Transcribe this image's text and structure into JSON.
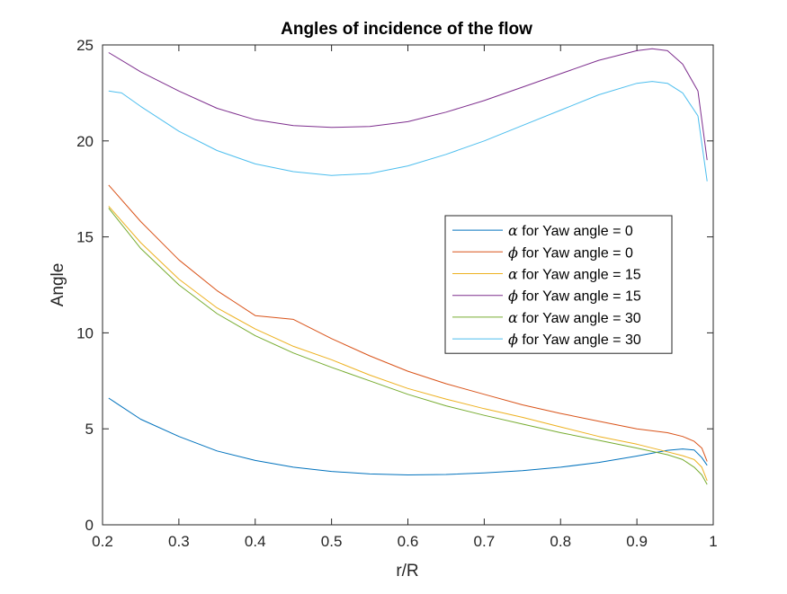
{
  "chart_data": {
    "type": "line",
    "title": "Angles of incidence of the flow",
    "xlabel": "r/R",
    "ylabel": "Angle",
    "xlim": [
      0.2,
      1
    ],
    "ylim": [
      0,
      25
    ],
    "xticks": [
      "0.2",
      "0.3",
      "0.4",
      "0.5",
      "0.6",
      "0.7",
      "0.8",
      "0.9",
      "1"
    ],
    "yticks": [
      "0",
      "5",
      "10",
      "15",
      "20",
      "25"
    ],
    "grid": false,
    "legend_position": "center-right",
    "series": [
      {
        "name": "α for Yaw angle = 0",
        "symbol": "α",
        "label_rest": " for Yaw angle = 0",
        "color": "#0072BD",
        "x": [
          0.208,
          0.25,
          0.3,
          0.35,
          0.4,
          0.45,
          0.5,
          0.55,
          0.6,
          0.65,
          0.7,
          0.75,
          0.8,
          0.85,
          0.9,
          0.94,
          0.96,
          0.975,
          0.985,
          0.992
        ],
        "y": [
          6.6,
          5.5,
          4.6,
          3.85,
          3.35,
          3.0,
          2.78,
          2.65,
          2.6,
          2.62,
          2.7,
          2.82,
          3.0,
          3.25,
          3.58,
          3.88,
          3.95,
          3.9,
          3.5,
          3.1
        ]
      },
      {
        "name": "ϕ for Yaw angle = 0",
        "symbol": "ϕ",
        "label_rest": " for Yaw angle = 0",
        "color": "#D95319",
        "x": [
          0.208,
          0.25,
          0.3,
          0.35,
          0.4,
          0.45,
          0.5,
          0.55,
          0.6,
          0.65,
          0.7,
          0.75,
          0.8,
          0.85,
          0.9,
          0.94,
          0.96,
          0.975,
          0.985,
          0.992
        ],
        "y": [
          17.7,
          15.8,
          13.8,
          12.2,
          10.9,
          10.7,
          9.7,
          8.8,
          8.0,
          7.35,
          6.8,
          6.25,
          5.8,
          5.4,
          5.0,
          4.8,
          4.6,
          4.35,
          4.0,
          3.3
        ]
      },
      {
        "name": "α for Yaw angle = 15",
        "symbol": "α",
        "label_rest": " for Yaw angle = 15",
        "color": "#EDB120",
        "x": [
          0.208,
          0.25,
          0.3,
          0.35,
          0.4,
          0.45,
          0.5,
          0.55,
          0.6,
          0.65,
          0.7,
          0.75,
          0.8,
          0.85,
          0.9,
          0.94,
          0.96,
          0.975,
          0.985,
          0.992
        ],
        "y": [
          16.6,
          14.7,
          12.8,
          11.3,
          10.2,
          9.3,
          8.6,
          7.8,
          7.1,
          6.55,
          6.05,
          5.6,
          5.1,
          4.6,
          4.2,
          3.8,
          3.6,
          3.4,
          3.0,
          2.3
        ]
      },
      {
        "name": "ϕ for Yaw angle = 15",
        "symbol": "ϕ",
        "label_rest": " for Yaw angle = 15",
        "color": "#7E2F8E",
        "x": [
          0.208,
          0.25,
          0.3,
          0.35,
          0.4,
          0.45,
          0.5,
          0.55,
          0.6,
          0.65,
          0.7,
          0.75,
          0.8,
          0.85,
          0.9,
          0.92,
          0.94,
          0.96,
          0.98,
          0.992
        ],
        "y": [
          24.6,
          23.6,
          22.6,
          21.7,
          21.1,
          20.8,
          20.7,
          20.75,
          21.0,
          21.5,
          22.1,
          22.8,
          23.5,
          24.2,
          24.7,
          24.8,
          24.7,
          24.0,
          22.6,
          19.0
        ]
      },
      {
        "name": "α for Yaw angle = 30",
        "symbol": "α",
        "label_rest": " for Yaw angle = 30",
        "color": "#77AC30",
        "x": [
          0.208,
          0.25,
          0.3,
          0.35,
          0.4,
          0.45,
          0.5,
          0.55,
          0.6,
          0.65,
          0.7,
          0.75,
          0.8,
          0.85,
          0.9,
          0.94,
          0.96,
          0.975,
          0.985,
          0.992
        ],
        "y": [
          16.5,
          14.4,
          12.5,
          11.0,
          9.85,
          8.95,
          8.2,
          7.5,
          6.8,
          6.2,
          5.7,
          5.25,
          4.8,
          4.4,
          4.0,
          3.65,
          3.4,
          3.0,
          2.6,
          2.1
        ]
      },
      {
        "name": "ϕ for Yaw angle = 30",
        "symbol": "ϕ",
        "label_rest": " for Yaw angle = 30",
        "color": "#4DBEEE",
        "x": [
          0.208,
          0.225,
          0.25,
          0.3,
          0.35,
          0.4,
          0.45,
          0.5,
          0.55,
          0.6,
          0.65,
          0.7,
          0.75,
          0.8,
          0.85,
          0.9,
          0.92,
          0.94,
          0.96,
          0.98,
          0.992
        ],
        "y": [
          22.6,
          22.5,
          21.8,
          20.5,
          19.5,
          18.8,
          18.4,
          18.2,
          18.3,
          18.7,
          19.3,
          20.0,
          20.8,
          21.6,
          22.4,
          23.0,
          23.1,
          23.0,
          22.5,
          21.3,
          17.9
        ]
      }
    ]
  }
}
